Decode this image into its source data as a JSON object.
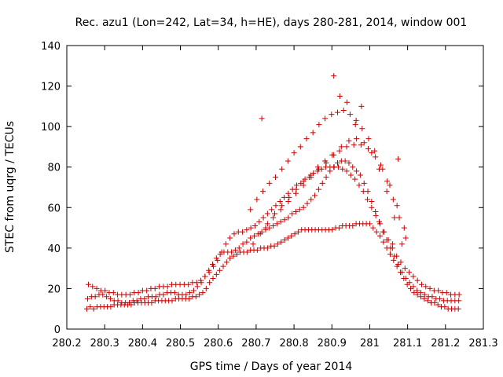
{
  "chart_data": {
    "type": "scatter",
    "title": "Rec. azu1 (Lon=242, Lat=34, h=HE), days 280-281, 2014, window 001",
    "xlabel": "GPS time / Days of year 2014",
    "ylabel": "STEC from uqrg / TECUs",
    "xlim": [
      280.2,
      281.3
    ],
    "ylim": [
      0,
      140
    ],
    "xticks": [
      "280.2",
      "280.3",
      "280.4",
      "280.5",
      "280.6",
      "280.7",
      "280.8",
      "280.9",
      "281",
      "281.1",
      "281.2",
      "281.3"
    ],
    "yticks": [
      "0",
      "20",
      "40",
      "60",
      "80",
      "100",
      "120",
      "140"
    ],
    "grid": false,
    "legend": "none",
    "marker": "+",
    "color": "#cc0000",
    "series": [
      {
        "x": [
          280.253,
          280.262,
          280.271,
          280.28,
          280.289,
          280.298,
          280.307,
          280.316,
          280.325,
          280.334,
          280.343,
          280.352,
          280.361,
          280.37,
          280.379,
          280.388,
          280.397,
          280.406,
          280.415,
          280.424,
          280.433,
          280.442,
          280.451,
          280.46,
          280.469,
          280.478,
          280.487,
          280.496,
          280.505,
          280.514,
          280.523,
          280.532,
          280.541,
          280.55,
          280.559,
          280.568,
          280.577,
          280.586,
          280.595,
          280.604,
          280.613,
          280.622,
          280.631,
          280.64,
          280.649,
          280.658,
          280.667,
          280.676,
          280.685,
          280.694,
          280.703,
          280.712,
          280.721,
          280.73,
          280.739,
          280.748,
          280.757,
          280.766,
          280.775,
          280.784,
          280.793,
          280.802,
          280.811,
          280.82,
          280.829,
          280.838,
          280.847,
          280.856,
          280.865,
          280.874,
          280.883,
          280.892,
          280.901,
          280.91,
          280.919,
          280.928,
          280.937,
          280.946,
          280.955,
          280.964,
          280.973,
          280.982,
          280.991,
          281.0,
          281.009,
          281.018,
          281.027,
          281.036,
          281.045,
          281.054,
          281.063,
          281.072,
          281.081,
          281.09,
          281.099,
          281.108,
          281.117,
          281.126,
          281.135,
          281.144,
          281.153,
          281.162,
          281.171,
          281.18,
          281.189,
          281.198,
          281.207,
          281.216,
          281.225,
          281.234
        ],
        "y": [
          10,
          11,
          10,
          11,
          11,
          11,
          11,
          11,
          12,
          12,
          12,
          12,
          12,
          12,
          13,
          13,
          13,
          13,
          13,
          13,
          14,
          14,
          14,
          14,
          14,
          14,
          15,
          15,
          15,
          15,
          15,
          16,
          16,
          17,
          18,
          20,
          23,
          25,
          27,
          29,
          31,
          33,
          35,
          36,
          37,
          38,
          38,
          38,
          39,
          39,
          39,
          40,
          40,
          40,
          41,
          41,
          42,
          43,
          44,
          45,
          46,
          47,
          48,
          49,
          49,
          49,
          49,
          49,
          49,
          49,
          49,
          49,
          49,
          50,
          50,
          51,
          51,
          51,
          51,
          52,
          52,
          52,
          52,
          52,
          50,
          48,
          46,
          43,
          40,
          37,
          34,
          31,
          28,
          25,
          22,
          20,
          18,
          17,
          16,
          15,
          14,
          13,
          13,
          12,
          11,
          11,
          10,
          10,
          10,
          10
        ]
      },
      {
        "x": [
          280.255,
          280.265,
          280.275,
          280.285,
          280.295,
          280.305,
          280.315,
          280.325,
          280.335,
          280.345,
          280.355,
          280.365,
          280.375,
          280.385,
          280.395,
          280.405,
          280.415,
          280.425,
          280.435,
          280.445,
          280.455,
          280.465,
          280.475,
          280.485,
          280.495,
          280.505,
          280.515,
          280.525,
          280.535,
          280.545,
          280.555,
          280.565,
          280.575,
          280.585,
          280.595,
          280.605,
          280.615,
          280.625,
          280.635,
          280.645,
          280.655,
          280.665,
          280.675,
          280.685,
          280.695,
          280.705,
          280.715,
          280.725,
          280.735,
          280.745,
          280.755,
          280.765,
          280.775,
          280.785,
          280.795,
          280.805,
          280.815,
          280.825,
          280.835,
          280.845,
          280.855,
          280.865,
          280.875,
          280.885,
          280.895,
          280.905,
          280.915,
          280.925,
          280.935,
          280.945,
          280.955,
          280.965,
          280.975,
          280.985,
          280.995,
          281.005,
          281.015,
          281.025,
          281.035,
          281.045,
          281.055,
          281.065,
          281.075,
          281.085,
          281.095,
          281.105,
          281.115,
          281.125,
          281.135,
          281.145,
          281.155,
          281.165,
          281.175,
          281.185,
          281.195,
          281.205,
          281.215,
          281.225,
          281.235
        ],
        "y": [
          15,
          16,
          16,
          17,
          17,
          16,
          15,
          14,
          14,
          13,
          13,
          13,
          14,
          14,
          15,
          15,
          16,
          16,
          16,
          17,
          17,
          18,
          18,
          18,
          17,
          17,
          17,
          18,
          19,
          21,
          23,
          26,
          29,
          32,
          35,
          37,
          38,
          38,
          38,
          39,
          40,
          42,
          43,
          45,
          46,
          47,
          48,
          49,
          50,
          51,
          52,
          53,
          54,
          55,
          57,
          58,
          59,
          60,
          62,
          64,
          66,
          69,
          72,
          75,
          78,
          80,
          82,
          83,
          83,
          82,
          80,
          78,
          76,
          72,
          68,
          63,
          58,
          53,
          48,
          44,
          40,
          36,
          32,
          28,
          25,
          23,
          21,
          19,
          18,
          17,
          16,
          16,
          15,
          15,
          14,
          14,
          14,
          14,
          14
        ]
      },
      {
        "x": [
          280.257,
          280.268,
          280.279,
          280.29,
          280.301,
          280.312,
          280.323,
          280.334,
          280.345,
          280.356,
          280.367,
          280.378,
          280.389,
          280.4,
          280.411,
          280.422,
          280.433,
          280.444,
          280.455,
          280.466,
          280.477,
          280.488,
          280.499,
          280.51,
          280.521,
          280.532,
          280.543,
          280.554,
          280.565,
          280.576,
          280.587,
          280.598,
          280.609,
          280.62,
          280.631,
          280.642,
          280.653,
          280.664,
          280.675,
          280.686,
          280.697,
          280.708,
          280.719,
          280.73,
          280.741,
          280.752,
          280.763,
          280.774,
          280.785,
          280.796,
          280.807,
          280.818,
          280.829,
          280.84,
          280.851,
          280.862,
          280.873,
          280.884,
          280.895,
          280.906,
          280.917,
          280.928,
          280.939,
          280.95,
          280.961,
          280.972,
          280.983,
          280.994,
          281.005,
          281.016,
          281.027,
          281.038,
          281.049,
          281.06,
          281.071,
          281.082,
          281.093,
          281.104,
          281.115,
          281.126,
          281.137,
          281.148,
          281.159,
          281.17,
          281.181,
          281.192,
          281.203,
          281.214,
          281.225,
          281.236
        ],
        "y": [
          22,
          21,
          20,
          19,
          19,
          18,
          18,
          17,
          17,
          17,
          17,
          18,
          18,
          19,
          19,
          20,
          20,
          21,
          21,
          21,
          22,
          22,
          22,
          22,
          22,
          23,
          23,
          24,
          26,
          28,
          31,
          34,
          38,
          42,
          45,
          47,
          48,
          48,
          49,
          50,
          51,
          53,
          55,
          57,
          59,
          61,
          63,
          65,
          67,
          69,
          71,
          72,
          74,
          75,
          77,
          78,
          79,
          80,
          80,
          80,
          80,
          79,
          78,
          76,
          74,
          71,
          68,
          64,
          60,
          56,
          52,
          48,
          44,
          40,
          36,
          33,
          30,
          28,
          26,
          24,
          22,
          21,
          20,
          19,
          19,
          18,
          18,
          17,
          17,
          17
        ]
      },
      {
        "x": [
          280.685,
          280.702,
          280.718,
          280.735,
          280.751,
          280.768,
          280.784,
          280.8,
          280.817,
          280.833,
          280.85,
          280.866,
          280.882,
          280.899,
          280.915,
          280.931,
          280.948,
          280.964,
          280.98,
          280.997,
          281.013,
          281.029,
          281.046,
          281.062,
          281.078,
          281.095
        ],
        "y": [
          59,
          64,
          68,
          72,
          75,
          79,
          83,
          87,
          90,
          94,
          97,
          101,
          104,
          106,
          107,
          108,
          106,
          103,
          99,
          94,
          88,
          81,
          73,
          64,
          55,
          45
        ]
      },
      {
        "x": [
          280.692,
          280.711,
          280.73,
          280.749,
          280.768,
          280.787,
          280.806,
          280.825,
          280.844,
          280.863,
          280.882,
          280.901,
          280.92,
          280.939,
          280.958,
          280.977,
          280.996,
          281.015,
          281.034,
          281.053,
          281.072,
          281.091
        ],
        "y": [
          42,
          47,
          52,
          57,
          61,
          65,
          69,
          73,
          76,
          80,
          83,
          86,
          88,
          90,
          91,
          91,
          89,
          85,
          79,
          71,
          61,
          50
        ]
      },
      {
        "x": [
          280.725,
          280.745,
          280.765,
          280.785,
          280.805,
          280.825,
          280.845,
          280.865,
          280.885,
          280.905,
          280.925,
          280.945,
          280.965,
          280.985,
          281.005,
          281.025,
          281.045,
          281.065,
          281.085
        ],
        "y": [
          50,
          55,
          59,
          63,
          67,
          71,
          75,
          79,
          82,
          86,
          90,
          93,
          94,
          92,
          87,
          79,
          68,
          55,
          42
        ]
      },
      {
        "x": [
          280.715,
          280.905,
          280.921,
          280.94,
          280.962,
          280.978,
          281.06,
          281.075
        ],
        "y": [
          104,
          125,
          115,
          112,
          101,
          110,
          42,
          84
        ]
      }
    ]
  }
}
